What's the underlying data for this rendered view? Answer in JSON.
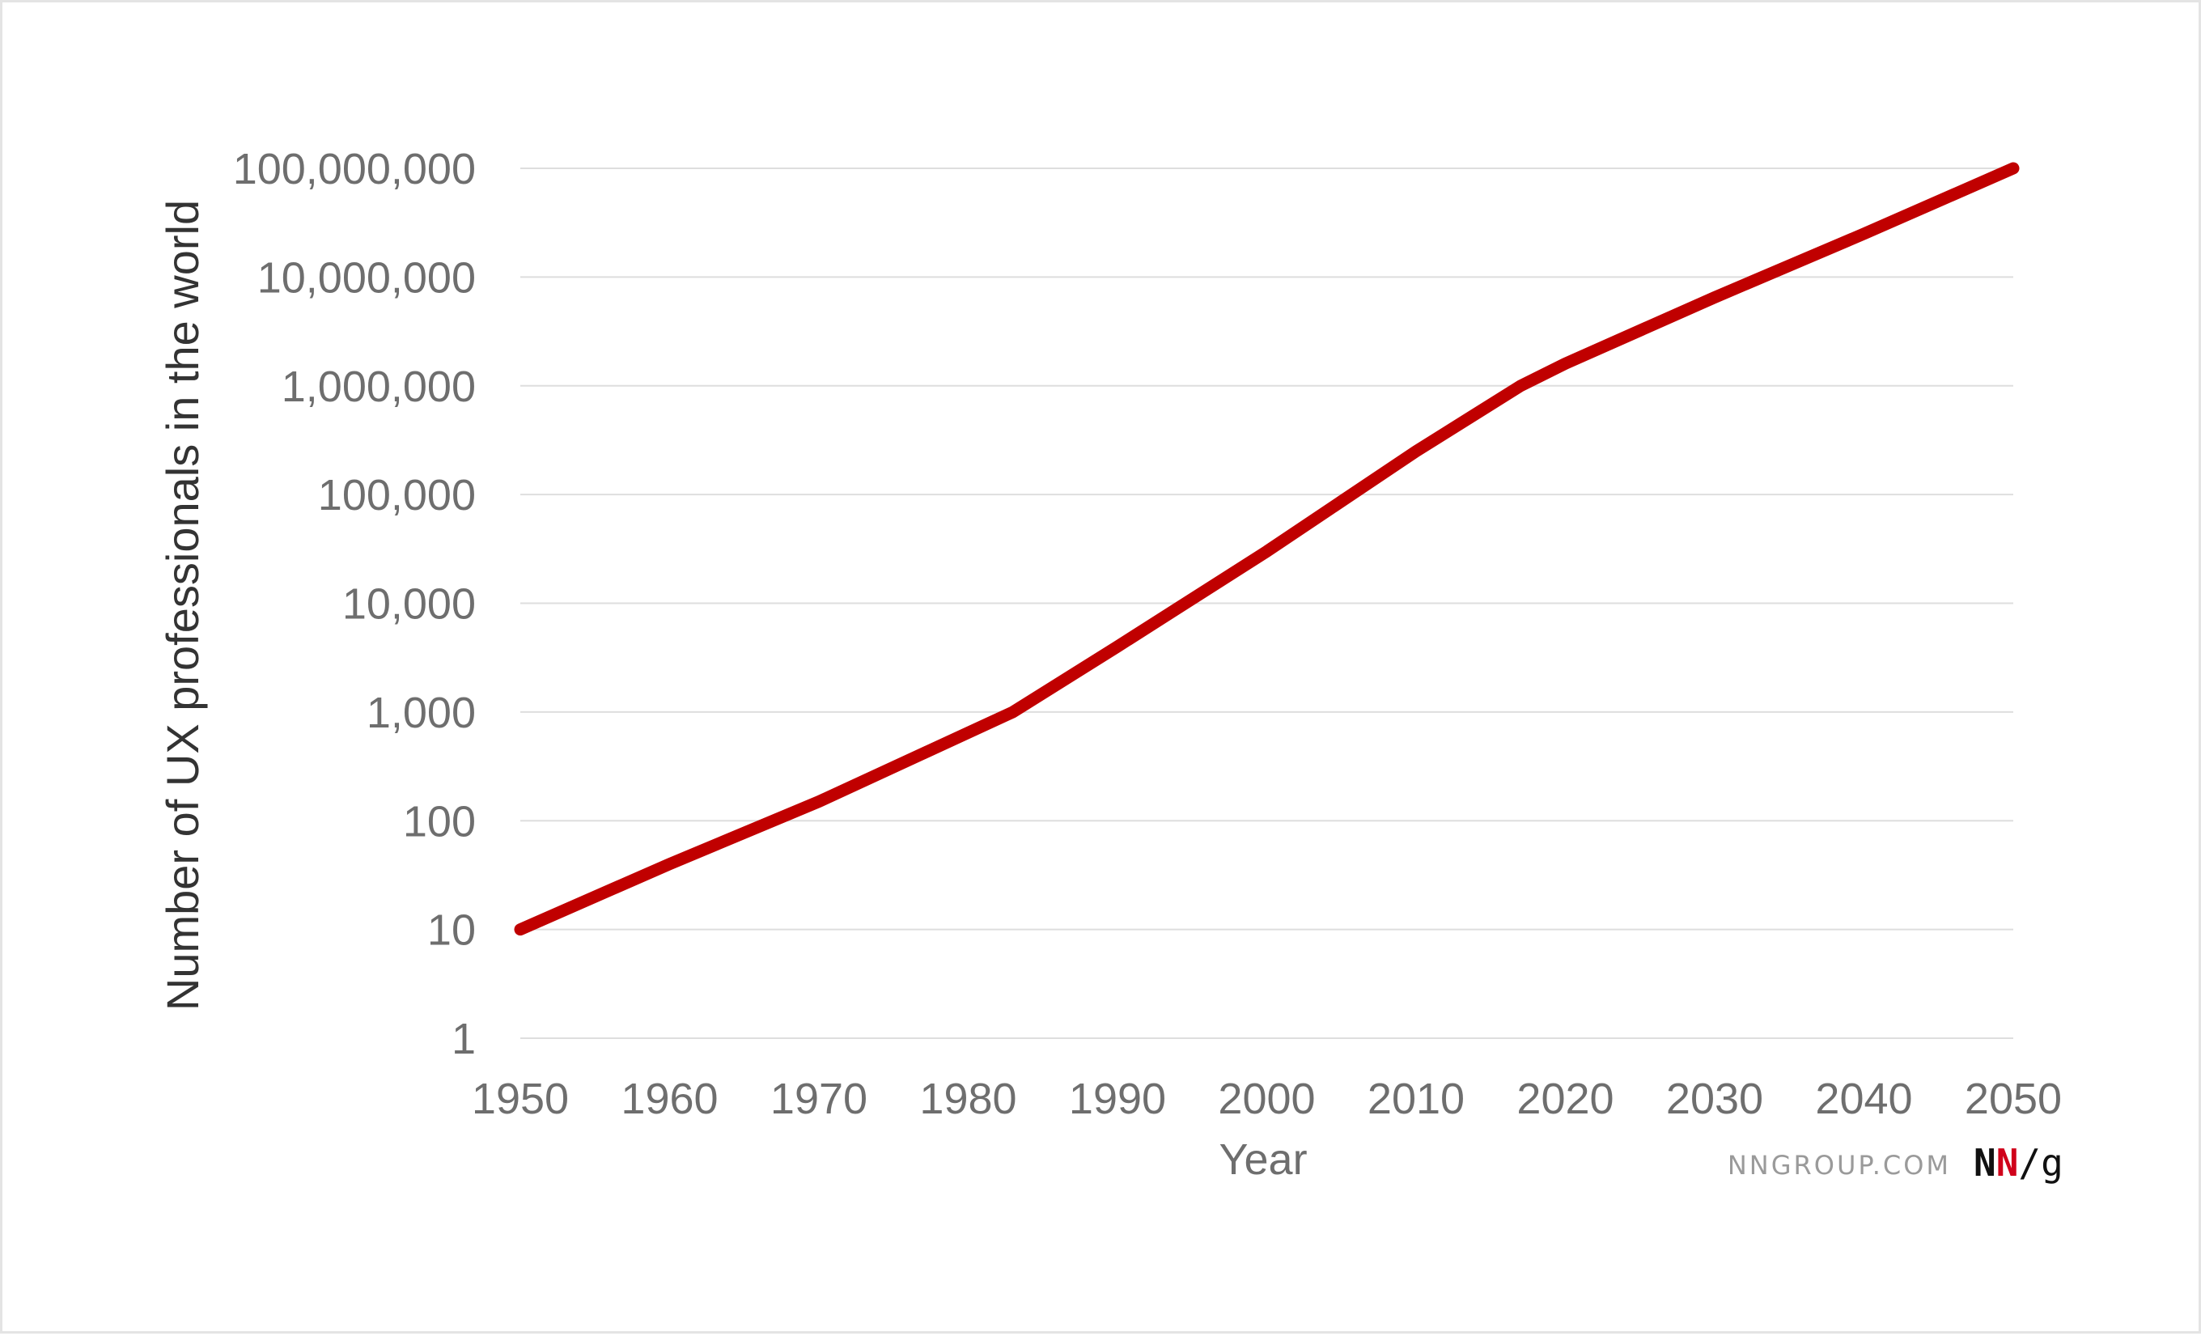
{
  "chart_data": {
    "type": "line",
    "title": "",
    "xlabel": "Year",
    "ylabel": "Number of UX professionals in the world",
    "yscale": "log",
    "xlim": [
      1950,
      2050
    ],
    "ylim": [
      1,
      100000000
    ],
    "grid": true,
    "x_ticks": [
      "1950",
      "1960",
      "1970",
      "1980",
      "1990",
      "2000",
      "2010",
      "2020",
      "2030",
      "2040",
      "2050"
    ],
    "y_ticks": [
      "1",
      "10",
      "100",
      "1,000",
      "10,000",
      "100,000",
      "1,000,000",
      "10,000,000",
      "100,000,000"
    ],
    "series": [
      {
        "color": "#c00000",
        "x": [
          1950,
          1960,
          1970,
          1983,
          1990,
          2000,
          2010,
          2017,
          2020,
          2030,
          2040,
          2050
        ],
        "y": [
          10,
          40,
          150,
          1000,
          4000,
          30000,
          250000,
          1000000,
          1600000,
          6500000,
          25000000,
          100000000
        ]
      }
    ]
  },
  "branding": {
    "site": "NNGROUP.COM",
    "logo_part1": "N",
    "logo_part2": "N",
    "logo_part3": "/g",
    "logo_accent_color": "#d0021b"
  }
}
